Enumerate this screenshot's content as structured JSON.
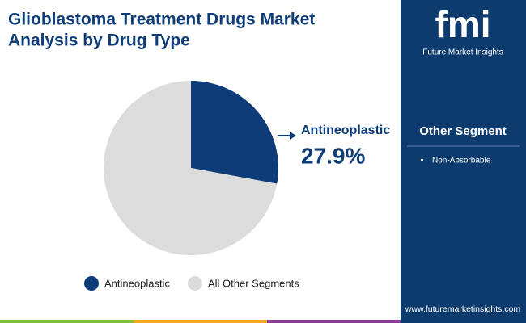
{
  "chart_data": {
    "type": "pie",
    "title": [
      "Glioblastoma Treatment Drugs Market",
      "Analysis by Drug Type"
    ],
    "categories": [
      "Antineoplastic",
      "All Other Segments"
    ],
    "values": [
      27.9,
      72.1
    ],
    "value_labels": [
      "27.9%",
      null
    ],
    "colors": [
      "#0d3c78",
      "#dcdcdc"
    ],
    "legend": "bottom"
  },
  "sidebar": {
    "logo": "fmi",
    "brand": "Future Market Insights",
    "heading": "Other Segment",
    "items": [
      "Non-Absorbable"
    ],
    "url": "www.futuremarketinsights.com"
  }
}
